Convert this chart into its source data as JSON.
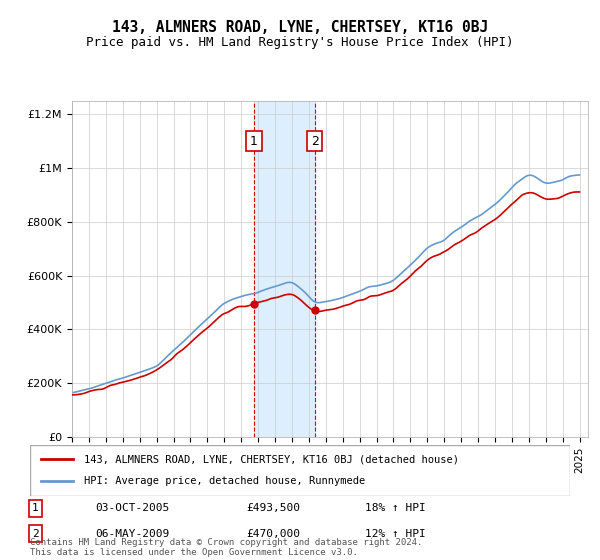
{
  "title": "143, ALMNERS ROAD, LYNE, CHERTSEY, KT16 0BJ",
  "subtitle": "Price paid vs. HM Land Registry's House Price Index (HPI)",
  "ylabel_ticks": [
    "£0",
    "£200K",
    "£400K",
    "£600K",
    "£800K",
    "£1M",
    "£1.2M"
  ],
  "ytick_vals": [
    0,
    200000,
    400000,
    600000,
    800000,
    1000000,
    1200000
  ],
  "ylim": [
    0,
    1250000
  ],
  "xlim_start": 1995.0,
  "xlim_end": 2025.5,
  "sale1": {
    "date": 2005.75,
    "price": 493500,
    "label": "1"
  },
  "sale2": {
    "date": 2009.35,
    "price": 470000,
    "label": "2"
  },
  "legend_line1": "143, ALMNERS ROAD, LYNE, CHERTSEY, KT16 0BJ (detached house)",
  "legend_line2": "HPI: Average price, detached house, Runnymede",
  "table_data": [
    {
      "num": "1",
      "date": "03-OCT-2005",
      "price": "£493,500",
      "hpi": "18% ↑ HPI"
    },
    {
      "num": "2",
      "date": "06-MAY-2009",
      "price": "£470,000",
      "hpi": "12% ↑ HPI"
    }
  ],
  "footer": "Contains HM Land Registry data © Crown copyright and database right 2024.\nThis data is licensed under the Open Government Licence v3.0.",
  "line_color_red": "#cc0000",
  "line_color_blue": "#6699cc",
  "shade_color": "#ddeeff",
  "vline_color": "#cc0000",
  "background_color": "#ffffff"
}
